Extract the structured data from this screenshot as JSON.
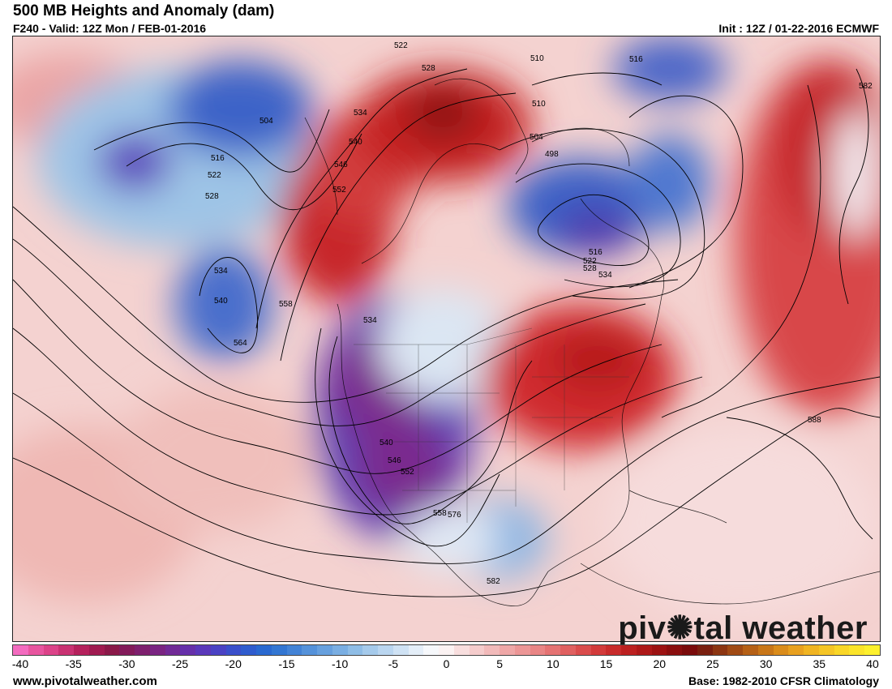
{
  "header": {
    "title": "500 MB Heights and Anomaly (dam)",
    "valid": "F240 - Valid: 12Z Mon / FEB-01-2016",
    "init": "Init : 12Z / 01-22-2016 ECMWF"
  },
  "footer": {
    "website": "www.pivotalweather.com",
    "climatology": "Base: 1982-2010 CFSR Climatology"
  },
  "logo": {
    "text_before": "piv",
    "text_after": "tal weather"
  },
  "colorbar": {
    "ticks": [
      "-40",
      "-35",
      "-30",
      "-25",
      "-20",
      "-15",
      "-10",
      "-5",
      "0",
      "5",
      "10",
      "15",
      "20",
      "25",
      "30",
      "35",
      "40"
    ],
    "colors": [
      "#f36bbf",
      "#e8559f",
      "#dc4389",
      "#c93272",
      "#b5215c",
      "#a01a50",
      "#8a1848",
      "#831a5a",
      "#7e1f6e",
      "#7a2482",
      "#712a96",
      "#6630aa",
      "#5a38ba",
      "#4a42c4",
      "#3a4fcb",
      "#2f5cce",
      "#2a69d0",
      "#3376d2",
      "#4383d6",
      "#5592da",
      "#67a0de",
      "#7aaee2",
      "#8fbde6",
      "#a5caeb",
      "#bad6f0",
      "#cfe2f4",
      "#e4eef8",
      "#f6f8fb",
      "#fbf2f2",
      "#f8dede",
      "#f5cccc",
      "#f2baba",
      "#efa7a7",
      "#ec9696",
      "#e98585",
      "#e57373",
      "#e06060",
      "#da4c4c",
      "#d23a3a",
      "#c82b2b",
      "#bc2020",
      "#ad1818",
      "#9c1212",
      "#8a0e0e",
      "#7a0b0b",
      "#7a1f0f",
      "#8c3511",
      "#a04a14",
      "#b56016",
      "#c87618",
      "#da8c1b",
      "#e8a01f",
      "#f0b422",
      "#f5c525",
      "#f9d627",
      "#fbe42a",
      "#fdf02d"
    ]
  },
  "map": {
    "contour_labels": [
      "522",
      "528",
      "510",
      "516",
      "582",
      "534",
      "540",
      "510",
      "504",
      "504",
      "516",
      "498",
      "546",
      "552",
      "522",
      "528",
      "534",
      "540",
      "534",
      "558",
      "564",
      "516",
      "522",
      "528",
      "534",
      "558",
      "540",
      "546",
      "552",
      "576",
      "582",
      "588"
    ],
    "legend_note": ""
  },
  "colors": {
    "strong_positive": "#b5161c",
    "strong_negative": "#4a2ea8",
    "neutral": "#f6f8fb"
  }
}
